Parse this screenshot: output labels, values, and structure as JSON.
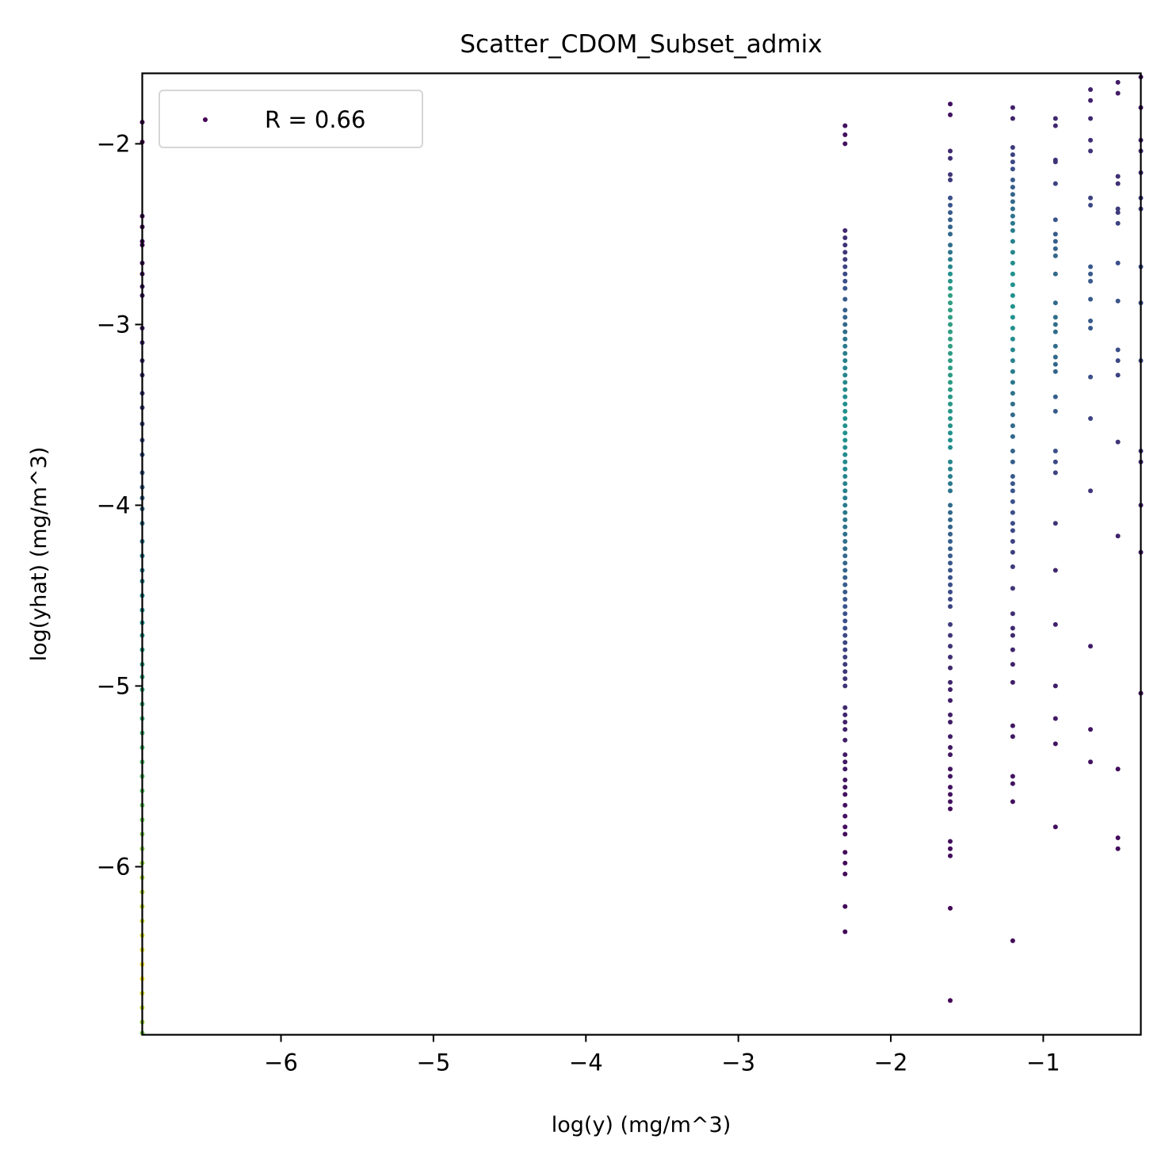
{
  "chart_data": {
    "type": "scatter",
    "title": "Scatter_CDOM_Subset_admix",
    "xlabel": "log(y) (mg/m^3)",
    "ylabel": "log(yhat) (mg/m^3)",
    "xlim": [
      -6.91,
      -0.36
    ],
    "ylim": [
      -6.93,
      -1.61
    ],
    "xticks": [
      -6,
      -5,
      -4,
      -3,
      -2,
      -1
    ],
    "yticks": [
      -2,
      -3,
      -4,
      -5,
      -6
    ],
    "xtick_labels": [
      "−6",
      "−5",
      "−4",
      "−3",
      "−2",
      "−1"
    ],
    "ytick_labels": [
      "−2",
      "−3",
      "−4",
      "−5",
      "−6"
    ],
    "grid": false,
    "legend": {
      "placement": "top-left",
      "label": "R = 0.66"
    },
    "colormap": "viridis",
    "colors": {
      "viridis_dark": "#440154",
      "viridis_blue": "#3b528b",
      "viridis_teal": "#21918c",
      "viridis_green": "#5ec962",
      "viridis_yellow": "#fde725"
    },
    "columns": [
      {
        "x": -6.91,
        "y": [
          -1.88,
          -1.99,
          -2.4,
          -2.46,
          -2.54,
          -2.56,
          -2.66,
          -2.72,
          -2.79,
          -2.84,
          -3.02,
          -3.1,
          -3.2,
          -3.28,
          -3.38,
          -3.46,
          -3.55,
          -3.64,
          -3.72,
          -3.82,
          -3.9,
          -3.96,
          -4.02,
          -4.1,
          -4.2,
          -4.28,
          -4.36,
          -4.42,
          -4.5,
          -4.58,
          -4.65,
          -4.72,
          -4.8,
          -4.88,
          -4.95,
          -5.02,
          -5.1,
          -5.18,
          -5.26,
          -5.34,
          -5.42,
          -5.5,
          -5.58,
          -5.66,
          -5.74,
          -5.82,
          -5.9,
          -5.98,
          -6.06,
          -6.14,
          -6.22,
          -6.3,
          -6.38,
          -6.46,
          -6.54,
          -6.62,
          -6.7,
          -6.78,
          -6.86,
          -6.92
        ],
        "density": [
          0.0,
          0.0,
          0.02,
          0.02,
          0.04,
          0.04,
          0.05,
          0.06,
          0.07,
          0.08,
          0.1,
          0.12,
          0.14,
          0.16,
          0.18,
          0.2,
          0.22,
          0.24,
          0.26,
          0.28,
          0.3,
          0.32,
          0.34,
          0.36,
          0.38,
          0.4,
          0.42,
          0.44,
          0.46,
          0.48,
          0.5,
          0.52,
          0.54,
          0.56,
          0.58,
          0.6,
          0.62,
          0.64,
          0.66,
          0.68,
          0.7,
          0.72,
          0.74,
          0.76,
          0.78,
          0.8,
          0.82,
          0.84,
          0.86,
          0.88,
          0.9,
          0.92,
          0.94,
          0.96,
          0.98,
          1.0,
          0.95,
          0.9,
          0.85,
          0.8
        ]
      },
      {
        "x": -2.3,
        "y": [
          -1.9,
          -1.95,
          -2.0,
          -2.48,
          -2.52,
          -2.56,
          -2.6,
          -2.64,
          -2.68,
          -2.72,
          -2.76,
          -2.8,
          -2.86,
          -2.92,
          -2.96,
          -3.0,
          -3.04,
          -3.08,
          -3.12,
          -3.16,
          -3.2,
          -3.24,
          -3.28,
          -3.32,
          -3.36,
          -3.4,
          -3.44,
          -3.48,
          -3.52,
          -3.56,
          -3.6,
          -3.64,
          -3.68,
          -3.72,
          -3.76,
          -3.8,
          -3.84,
          -3.88,
          -3.92,
          -3.96,
          -4.0,
          -4.04,
          -4.08,
          -4.12,
          -4.16,
          -4.2,
          -4.24,
          -4.28,
          -4.32,
          -4.36,
          -4.4,
          -4.44,
          -4.48,
          -4.52,
          -4.56,
          -4.6,
          -4.64,
          -4.68,
          -4.72,
          -4.76,
          -4.8,
          -4.84,
          -4.88,
          -4.92,
          -4.96,
          -5.0,
          -5.12,
          -5.16,
          -5.2,
          -5.24,
          -5.3,
          -5.38,
          -5.42,
          -5.46,
          -5.52,
          -5.56,
          -5.6,
          -5.66,
          -5.72,
          -5.78,
          -5.82,
          -5.92,
          -5.98,
          -6.04,
          -6.22,
          -6.36
        ],
        "density": [
          0.05,
          0.05,
          0.05,
          0.12,
          0.14,
          0.15,
          0.16,
          0.18,
          0.2,
          0.22,
          0.24,
          0.26,
          0.28,
          0.3,
          0.32,
          0.34,
          0.36,
          0.38,
          0.4,
          0.42,
          0.43,
          0.44,
          0.45,
          0.46,
          0.47,
          0.48,
          0.49,
          0.5,
          0.5,
          0.5,
          0.5,
          0.5,
          0.49,
          0.48,
          0.47,
          0.46,
          0.45,
          0.44,
          0.43,
          0.42,
          0.41,
          0.4,
          0.39,
          0.38,
          0.37,
          0.36,
          0.35,
          0.34,
          0.33,
          0.32,
          0.3,
          0.29,
          0.28,
          0.27,
          0.26,
          0.25,
          0.24,
          0.23,
          0.22,
          0.21,
          0.2,
          0.19,
          0.18,
          0.17,
          0.16,
          0.15,
          0.12,
          0.11,
          0.1,
          0.1,
          0.09,
          0.08,
          0.07,
          0.07,
          0.06,
          0.06,
          0.05,
          0.05,
          0.05,
          0.04,
          0.04,
          0.03,
          0.03,
          0.03,
          0.02,
          0.02
        ]
      },
      {
        "x": -1.61,
        "y": [
          -1.78,
          -1.84,
          -2.04,
          -2.08,
          -2.17,
          -2.2,
          -2.3,
          -2.34,
          -2.38,
          -2.42,
          -2.46,
          -2.5,
          -2.56,
          -2.6,
          -2.64,
          -2.68,
          -2.72,
          -2.76,
          -2.8,
          -2.84,
          -2.88,
          -2.92,
          -2.96,
          -3.0,
          -3.04,
          -3.08,
          -3.12,
          -3.16,
          -3.2,
          -3.24,
          -3.28,
          -3.32,
          -3.36,
          -3.4,
          -3.44,
          -3.48,
          -3.52,
          -3.56,
          -3.6,
          -3.64,
          -3.68,
          -3.76,
          -3.8,
          -3.84,
          -3.88,
          -3.92,
          -4.0,
          -4.04,
          -4.08,
          -4.12,
          -4.16,
          -4.2,
          -4.24,
          -4.28,
          -4.32,
          -4.36,
          -4.4,
          -4.44,
          -4.48,
          -4.52,
          -4.56,
          -4.66,
          -4.72,
          -4.78,
          -4.84,
          -4.9,
          -4.98,
          -5.02,
          -5.08,
          -5.16,
          -5.2,
          -5.28,
          -5.34,
          -5.38,
          -5.46,
          -5.5,
          -5.56,
          -5.6,
          -5.64,
          -5.68,
          -5.86,
          -5.9,
          -5.94,
          -6.23,
          -6.74
        ],
        "density": [
          0.05,
          0.05,
          0.12,
          0.14,
          0.16,
          0.18,
          0.24,
          0.26,
          0.28,
          0.3,
          0.32,
          0.34,
          0.36,
          0.38,
          0.42,
          0.46,
          0.5,
          0.52,
          0.54,
          0.56,
          0.56,
          0.56,
          0.56,
          0.56,
          0.56,
          0.56,
          0.56,
          0.55,
          0.55,
          0.55,
          0.54,
          0.54,
          0.54,
          0.53,
          0.53,
          0.52,
          0.52,
          0.51,
          0.5,
          0.5,
          0.48,
          0.46,
          0.44,
          0.42,
          0.4,
          0.38,
          0.35,
          0.34,
          0.33,
          0.32,
          0.31,
          0.3,
          0.29,
          0.28,
          0.27,
          0.26,
          0.25,
          0.24,
          0.23,
          0.22,
          0.21,
          0.18,
          0.16,
          0.15,
          0.14,
          0.12,
          0.11,
          0.1,
          0.09,
          0.09,
          0.08,
          0.08,
          0.07,
          0.07,
          0.06,
          0.06,
          0.05,
          0.05,
          0.05,
          0.04,
          0.04,
          0.03,
          0.03,
          0.02,
          0.01
        ]
      },
      {
        "x": -1.2,
        "y": [
          -1.8,
          -1.86,
          -2.02,
          -2.06,
          -2.1,
          -2.14,
          -2.2,
          -2.24,
          -2.28,
          -2.32,
          -2.36,
          -2.4,
          -2.44,
          -2.48,
          -2.54,
          -2.6,
          -2.66,
          -2.72,
          -2.78,
          -2.84,
          -2.9,
          -2.96,
          -3.02,
          -3.08,
          -3.14,
          -3.2,
          -3.26,
          -3.32,
          -3.38,
          -3.44,
          -3.5,
          -3.56,
          -3.62,
          -3.7,
          -3.76,
          -3.84,
          -3.88,
          -3.92,
          -3.98,
          -4.04,
          -4.1,
          -4.14,
          -4.2,
          -4.26,
          -4.34,
          -4.46,
          -4.6,
          -4.68,
          -4.72,
          -4.8,
          -4.88,
          -4.98,
          -5.22,
          -5.28,
          -5.5,
          -5.54,
          -5.64,
          -6.41
        ],
        "density": [
          0.1,
          0.1,
          0.18,
          0.2,
          0.22,
          0.24,
          0.28,
          0.3,
          0.32,
          0.34,
          0.36,
          0.38,
          0.4,
          0.42,
          0.44,
          0.46,
          0.48,
          0.5,
          0.5,
          0.5,
          0.5,
          0.5,
          0.5,
          0.48,
          0.46,
          0.44,
          0.42,
          0.4,
          0.38,
          0.36,
          0.35,
          0.34,
          0.33,
          0.32,
          0.3,
          0.28,
          0.27,
          0.26,
          0.25,
          0.24,
          0.23,
          0.22,
          0.2,
          0.19,
          0.18,
          0.16,
          0.14,
          0.13,
          0.12,
          0.11,
          0.1,
          0.09,
          0.07,
          0.07,
          0.06,
          0.06,
          0.05,
          0.02
        ]
      },
      {
        "x": -0.92,
        "y": [
          -1.86,
          -1.9,
          -2.09,
          -2.1,
          -2.22,
          -2.42,
          -2.5,
          -2.54,
          -2.58,
          -2.62,
          -2.72,
          -2.88,
          -2.96,
          -3.0,
          -3.04,
          -3.12,
          -3.18,
          -3.22,
          -3.26,
          -3.4,
          -3.48,
          -3.7,
          -3.76,
          -3.82,
          -4.1,
          -4.36,
          -4.66,
          -5.0,
          -5.18,
          -5.32,
          -5.78
        ],
        "density": [
          0.12,
          0.12,
          0.16,
          0.16,
          0.2,
          0.26,
          0.28,
          0.3,
          0.32,
          0.33,
          0.34,
          0.35,
          0.36,
          0.36,
          0.36,
          0.35,
          0.34,
          0.33,
          0.32,
          0.3,
          0.28,
          0.24,
          0.22,
          0.2,
          0.16,
          0.12,
          0.1,
          0.08,
          0.07,
          0.06,
          0.04
        ]
      },
      {
        "x": -0.69,
        "y": [
          -1.7,
          -1.76,
          -1.86,
          -1.98,
          -2.04,
          -2.3,
          -2.34,
          -2.68,
          -2.72,
          -2.76,
          -2.86,
          -2.98,
          -3.02,
          -3.29,
          -3.52,
          -3.92,
          -4.78,
          -5.24,
          -5.42
        ],
        "density": [
          0.1,
          0.1,
          0.12,
          0.14,
          0.16,
          0.2,
          0.22,
          0.28,
          0.28,
          0.28,
          0.28,
          0.28,
          0.28,
          0.24,
          0.2,
          0.16,
          0.08,
          0.06,
          0.05
        ]
      },
      {
        "x": -0.51,
        "y": [
          -1.66,
          -1.72,
          -2.18,
          -2.22,
          -2.36,
          -2.38,
          -2.44,
          -2.66,
          -2.87,
          -3.14,
          -3.2,
          -3.28,
          -3.65,
          -4.17,
          -5.46,
          -5.84,
          -5.9
        ],
        "density": [
          0.08,
          0.08,
          0.14,
          0.14,
          0.18,
          0.18,
          0.2,
          0.24,
          0.26,
          0.24,
          0.22,
          0.2,
          0.16,
          0.1,
          0.04,
          0.03,
          0.03
        ]
      },
      {
        "x": -0.36,
        "y": [
          -1.63,
          -1.8,
          -1.98,
          -2.04,
          -2.16,
          -2.3,
          -2.36,
          -2.68,
          -2.88,
          -3.2,
          -3.7,
          -3.76,
          -4.0,
          -4.26,
          -5.04
        ],
        "density": [
          0.06,
          0.06,
          0.1,
          0.12,
          0.14,
          0.18,
          0.2,
          0.24,
          0.24,
          0.22,
          0.16,
          0.14,
          0.1,
          0.08,
          0.04
        ]
      }
    ]
  }
}
